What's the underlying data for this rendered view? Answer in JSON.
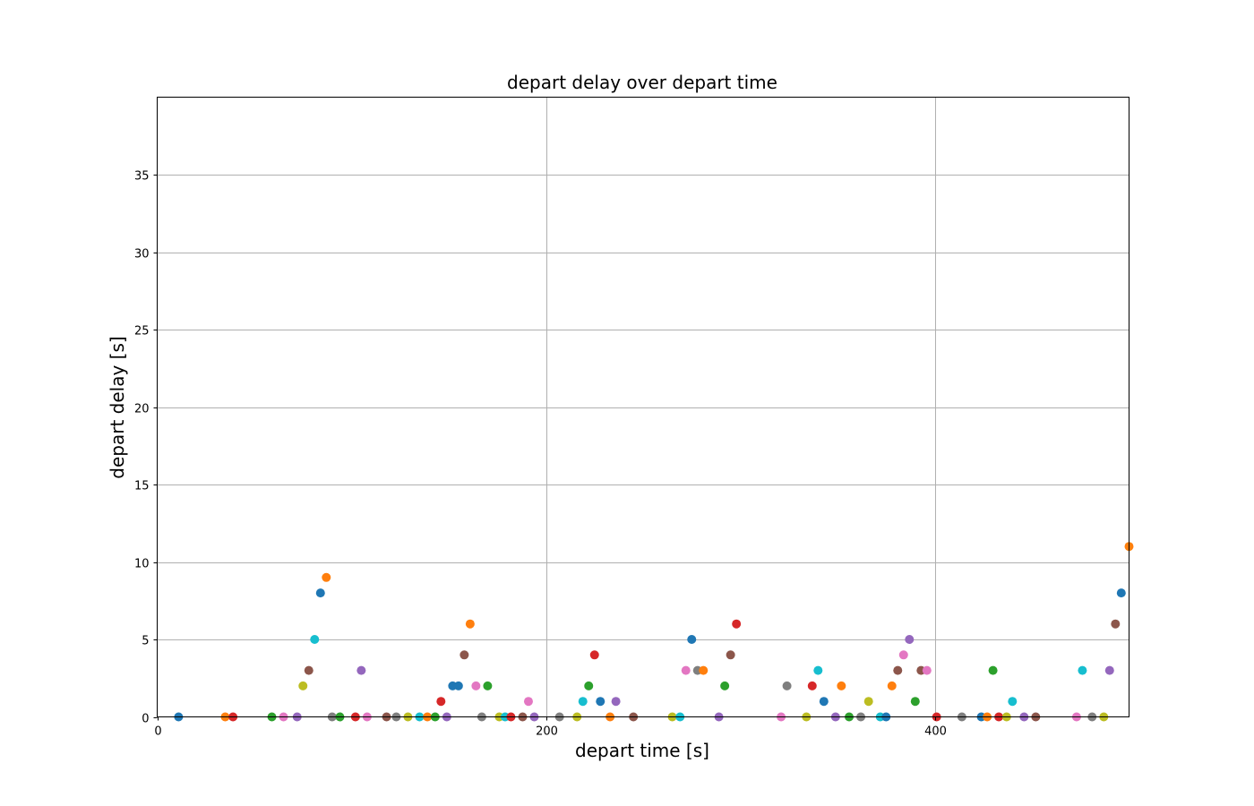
{
  "chart_data": {
    "type": "scatter",
    "title": "depart delay over depart time",
    "xlabel": "depart time [s]",
    "ylabel": "depart delay [s]",
    "xlim": [
      0,
      500
    ],
    "ylim": [
      0,
      40
    ],
    "xticks": [
      0,
      200,
      400
    ],
    "yticks": [
      0,
      5,
      10,
      15,
      20,
      25,
      30,
      35
    ],
    "grid": true,
    "palette": [
      "#1f77b4",
      "#ff7f0e",
      "#2ca02c",
      "#d62728",
      "#9467bd",
      "#8c564b",
      "#e377c2",
      "#7f7f7f",
      "#bcbd22",
      "#17becf"
    ],
    "points": [
      {
        "x": 11,
        "y": 0,
        "color": "#1f77b4"
      },
      {
        "x": 35,
        "y": 0,
        "color": "#ff7f0e"
      },
      {
        "x": 39,
        "y": 0,
        "color": "#d62728"
      },
      {
        "x": 59,
        "y": 0,
        "color": "#2ca02c"
      },
      {
        "x": 65,
        "y": 0,
        "color": "#e377c2"
      },
      {
        "x": 72,
        "y": 0,
        "color": "#9467bd"
      },
      {
        "x": 75,
        "y": 2,
        "color": "#bcbd22"
      },
      {
        "x": 78,
        "y": 3,
        "color": "#8c564b"
      },
      {
        "x": 81,
        "y": 5,
        "color": "#17becf"
      },
      {
        "x": 84,
        "y": 8,
        "color": "#1f77b4"
      },
      {
        "x": 87,
        "y": 9,
        "color": "#ff7f0e"
      },
      {
        "x": 90,
        "y": 0,
        "color": "#7f7f7f"
      },
      {
        "x": 94,
        "y": 0,
        "color": "#2ca02c"
      },
      {
        "x": 102,
        "y": 0,
        "color": "#d62728"
      },
      {
        "x": 105,
        "y": 3,
        "color": "#9467bd"
      },
      {
        "x": 108,
        "y": 0,
        "color": "#e377c2"
      },
      {
        "x": 118,
        "y": 0,
        "color": "#8c564b"
      },
      {
        "x": 123,
        "y": 0,
        "color": "#7f7f7f"
      },
      {
        "x": 129,
        "y": 0,
        "color": "#bcbd22"
      },
      {
        "x": 135,
        "y": 0,
        "color": "#17becf"
      },
      {
        "x": 139,
        "y": 0,
        "color": "#ff7f0e"
      },
      {
        "x": 143,
        "y": 0,
        "color": "#2ca02c"
      },
      {
        "x": 146,
        "y": 1,
        "color": "#d62728"
      },
      {
        "x": 149,
        "y": 0,
        "color": "#9467bd"
      },
      {
        "x": 152,
        "y": 2,
        "color": "#1f77b4"
      },
      {
        "x": 155,
        "y": 2,
        "color": "#1f77b4"
      },
      {
        "x": 158,
        "y": 4,
        "color": "#8c564b"
      },
      {
        "x": 161,
        "y": 6,
        "color": "#ff7f0e"
      },
      {
        "x": 164,
        "y": 2,
        "color": "#e377c2"
      },
      {
        "x": 167,
        "y": 0,
        "color": "#7f7f7f"
      },
      {
        "x": 170,
        "y": 2,
        "color": "#2ca02c"
      },
      {
        "x": 176,
        "y": 0,
        "color": "#bcbd22"
      },
      {
        "x": 179,
        "y": 0,
        "color": "#17becf"
      },
      {
        "x": 182,
        "y": 0,
        "color": "#d62728"
      },
      {
        "x": 188,
        "y": 0,
        "color": "#8c564b"
      },
      {
        "x": 191,
        "y": 1,
        "color": "#e377c2"
      },
      {
        "x": 194,
        "y": 0,
        "color": "#9467bd"
      },
      {
        "x": 207,
        "y": 0,
        "color": "#7f7f7f"
      },
      {
        "x": 216,
        "y": 0,
        "color": "#bcbd22"
      },
      {
        "x": 219,
        "y": 1,
        "color": "#17becf"
      },
      {
        "x": 222,
        "y": 2,
        "color": "#2ca02c"
      },
      {
        "x": 225,
        "y": 4,
        "color": "#d62728"
      },
      {
        "x": 228,
        "y": 1,
        "color": "#1f77b4"
      },
      {
        "x": 233,
        "y": 0,
        "color": "#ff7f0e"
      },
      {
        "x": 236,
        "y": 1,
        "color": "#9467bd"
      },
      {
        "x": 245,
        "y": 0,
        "color": "#8c564b"
      },
      {
        "x": 265,
        "y": 0,
        "color": "#bcbd22"
      },
      {
        "x": 269,
        "y": 0,
        "color": "#17becf"
      },
      {
        "x": 272,
        "y": 3,
        "color": "#e377c2"
      },
      {
        "x": 275,
        "y": 5,
        "color": "#1f77b4"
      },
      {
        "x": 278,
        "y": 3,
        "color": "#7f7f7f"
      },
      {
        "x": 281,
        "y": 3,
        "color": "#ff7f0e"
      },
      {
        "x": 289,
        "y": 0,
        "color": "#9467bd"
      },
      {
        "x": 292,
        "y": 2,
        "color": "#2ca02c"
      },
      {
        "x": 295,
        "y": 4,
        "color": "#8c564b"
      },
      {
        "x": 298,
        "y": 6,
        "color": "#d62728"
      },
      {
        "x": 321,
        "y": 0,
        "color": "#e377c2"
      },
      {
        "x": 324,
        "y": 2,
        "color": "#7f7f7f"
      },
      {
        "x": 334,
        "y": 0,
        "color": "#bcbd22"
      },
      {
        "x": 337,
        "y": 2,
        "color": "#d62728"
      },
      {
        "x": 340,
        "y": 3,
        "color": "#17becf"
      },
      {
        "x": 343,
        "y": 1,
        "color": "#1f77b4"
      },
      {
        "x": 349,
        "y": 0,
        "color": "#9467bd"
      },
      {
        "x": 352,
        "y": 2,
        "color": "#ff7f0e"
      },
      {
        "x": 356,
        "y": 0,
        "color": "#2ca02c"
      },
      {
        "x": 362,
        "y": 0,
        "color": "#7f7f7f"
      },
      {
        "x": 366,
        "y": 1,
        "color": "#bcbd22"
      },
      {
        "x": 372,
        "y": 0,
        "color": "#17becf"
      },
      {
        "x": 375,
        "y": 0,
        "color": "#1f77b4"
      },
      {
        "x": 378,
        "y": 2,
        "color": "#ff7f0e"
      },
      {
        "x": 381,
        "y": 3,
        "color": "#8c564b"
      },
      {
        "x": 384,
        "y": 4,
        "color": "#e377c2"
      },
      {
        "x": 387,
        "y": 5,
        "color": "#9467bd"
      },
      {
        "x": 390,
        "y": 1,
        "color": "#2ca02c"
      },
      {
        "x": 393,
        "y": 3,
        "color": "#8c564b"
      },
      {
        "x": 396,
        "y": 3,
        "color": "#e377c2"
      },
      {
        "x": 401,
        "y": 0,
        "color": "#d62728"
      },
      {
        "x": 414,
        "y": 0,
        "color": "#7f7f7f"
      },
      {
        "x": 424,
        "y": 0,
        "color": "#1f77b4"
      },
      {
        "x": 427,
        "y": 0,
        "color": "#ff7f0e"
      },
      {
        "x": 430,
        "y": 3,
        "color": "#2ca02c"
      },
      {
        "x": 433,
        "y": 0,
        "color": "#d62728"
      },
      {
        "x": 437,
        "y": 0,
        "color": "#bcbd22"
      },
      {
        "x": 440,
        "y": 1,
        "color": "#17becf"
      },
      {
        "x": 446,
        "y": 0,
        "color": "#9467bd"
      },
      {
        "x": 452,
        "y": 0,
        "color": "#8c564b"
      },
      {
        "x": 473,
        "y": 0,
        "color": "#e377c2"
      },
      {
        "x": 476,
        "y": 3,
        "color": "#17becf"
      },
      {
        "x": 481,
        "y": 0,
        "color": "#7f7f7f"
      },
      {
        "x": 487,
        "y": 0,
        "color": "#bcbd22"
      },
      {
        "x": 490,
        "y": 3,
        "color": "#9467bd"
      },
      {
        "x": 493,
        "y": 6,
        "color": "#8c564b"
      },
      {
        "x": 496,
        "y": 8,
        "color": "#1f77b4"
      },
      {
        "x": 500,
        "y": 11,
        "color": "#ff7f0e"
      }
    ]
  }
}
